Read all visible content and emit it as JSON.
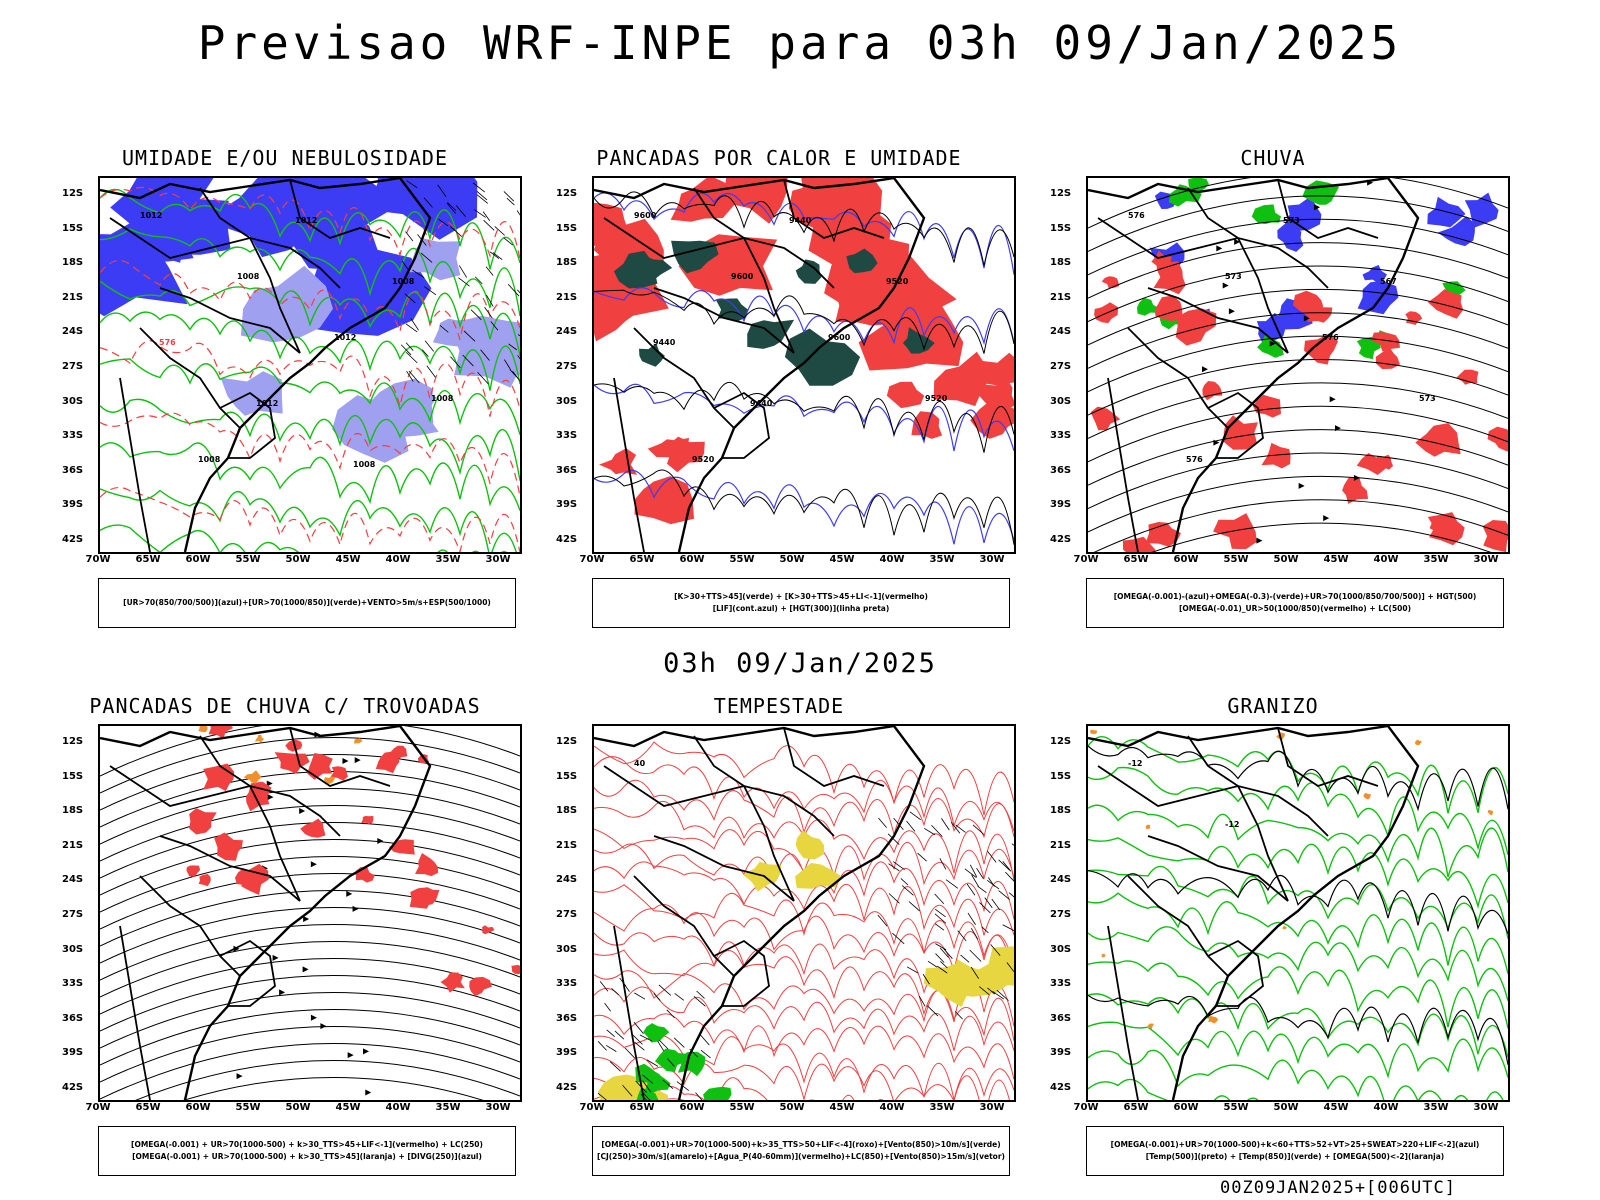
{
  "header": {
    "title": "Previsao WRF-INPE  para 03h 09/Jan/2025"
  },
  "mid_label": "03h 09/Jan/2025",
  "footer": "00Z09JAN2025+[006UTC]",
  "axes": {
    "lat_labels": [
      "12S",
      "15S",
      "18S",
      "21S",
      "24S",
      "27S",
      "30S",
      "33S",
      "36S",
      "39S",
      "42S"
    ],
    "lon_labels": [
      "70W",
      "65W",
      "60W",
      "55W",
      "50W",
      "45W",
      "40W",
      "35W",
      "30W"
    ]
  },
  "colors": {
    "blue": "#3c3cf5",
    "lightblue": "#a0a0f0",
    "green": "#10c010",
    "red": "#f04040",
    "darkgreen": "#1f4a44",
    "yellow": "#e8d640",
    "orange": "#f0902a",
    "black": "#000000"
  },
  "panels": [
    {
      "title": "UMIDADE E/OU NEBULOSIDADE",
      "legend": [
        "[UR>70(850/700/500)](azul)+[UR>70(1000/850)](verde)+VENTO>5m/s+ESP(500/1000)"
      ],
      "contour_labels": [
        "1012",
        "1008",
        "1012",
        "1008",
        "1008",
        "1012",
        "1008",
        "576",
        "1012",
        "1008"
      ]
    },
    {
      "title": "PANCADAS POR CALOR E UMIDADE",
      "legend": [
        "[K>30+TTS>45](verde) + [K>30+TTS>45+LI<-1](vermelho)",
        "[LIF](cont.azul) + [HGT(300)](linha preta)"
      ],
      "contour_labels": [
        "9600",
        "9600",
        "9600",
        "9520",
        "9520",
        "9440",
        "9520",
        "9440",
        "9440"
      ]
    },
    {
      "title": "CHUVA",
      "legend": [
        "[OMEGA(-0.001)-(azul)+OMEGA(-0.3)-(verde)+UR>70(1000/850/700/500)] + HGT(500)",
        "[OMEGA(-0.01)_UR>50(1000/850)(vermelho) + LC(500)"
      ],
      "contour_labels": [
        "576",
        "573",
        "576",
        "573",
        "576",
        "573",
        "567"
      ]
    },
    {
      "title": "PANCADAS DE CHUVA C/ TROVOADAS",
      "legend": [
        "[OMEGA(-0.001) + UR>70(1000-500) + k>30_TTS>45+LIF<-1](vermelho) + LC(250)",
        "[OMEGA(-0.001) + UR>70(1000-500) + k>30_TTS>45](laranja) + [DIVG(250)](azul)"
      ],
      "contour_labels": []
    },
    {
      "title": "TEMPESTADE",
      "legend": [
        "[OMEGA(-0.001)+UR>70(1000-500)+k>35_TTS>50+LIF<-4](roxo)+[Vento(850)>10m/s](verde)",
        "[CJ(250)>30m/s](amarelo)+[Agua_P(40-60mm)](vermelho)+LC(850)+[Vento(850)>15m/s](vetor)"
      ],
      "contour_labels": [
        "40"
      ]
    },
    {
      "title": "GRANIZO",
      "legend": [
        "[OMEGA(-0.001)+UR>70(1000-500)+k<60+TTS>52+VT>25+SWEAT>220+LIF<-2](azul)",
        "[Temp(500)](preto) + [Temp(850)](verde) + [OMEGA(500)<-2](laranja)"
      ],
      "contour_labels": [
        "-12",
        "-12"
      ]
    }
  ]
}
